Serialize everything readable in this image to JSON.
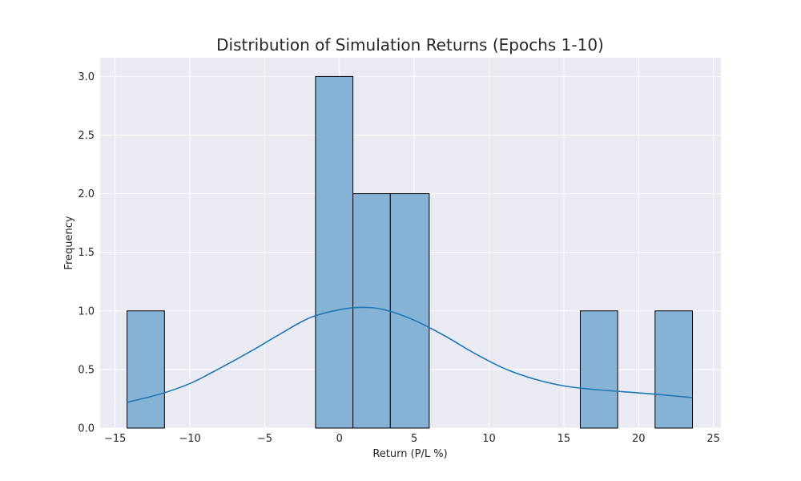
{
  "chart_data": {
    "type": "bar",
    "title": "Distribution of Simulation Returns (Epochs 1-10)",
    "xlabel": "Return (P/L %)",
    "ylabel": "Frequency",
    "xlim": [
      -16,
      25.5
    ],
    "ylim": [
      0,
      3.16
    ],
    "x_ticks": [
      -15,
      -10,
      -5,
      0,
      5,
      10,
      15,
      20,
      25
    ],
    "x_tick_labels": [
      "−15",
      "−10",
      "−5",
      "0",
      "5",
      "10",
      "15",
      "20",
      "25"
    ],
    "y_ticks": [
      0.0,
      0.5,
      1.0,
      1.5,
      2.0,
      2.5,
      3.0
    ],
    "y_tick_labels": [
      "0.0",
      "0.5",
      "1.0",
      "1.5",
      "2.0",
      "2.5",
      "3.0"
    ],
    "grid": true,
    "bins": [
      {
        "x0": -14.2,
        "x1": -11.7,
        "count": 1
      },
      {
        "x0": -11.7,
        "x1": -9.2,
        "count": 0
      },
      {
        "x0": -9.2,
        "x1": -6.6,
        "count": 0
      },
      {
        "x0": -6.6,
        "x1": -4.1,
        "count": 0
      },
      {
        "x0": -4.1,
        "x1": -1.6,
        "count": 0
      },
      {
        "x0": -1.6,
        "x1": 0.9,
        "count": 3
      },
      {
        "x0": 0.9,
        "x1": 3.4,
        "count": 2
      },
      {
        "x0": 3.4,
        "x1": 6.0,
        "count": 2
      },
      {
        "x0": 6.0,
        "x1": 8.5,
        "count": 0
      },
      {
        "x0": 8.5,
        "x1": 11.0,
        "count": 0
      },
      {
        "x0": 11.0,
        "x1": 13.5,
        "count": 0
      },
      {
        "x0": 13.5,
        "x1": 16.1,
        "count": 0
      },
      {
        "x0": 16.1,
        "x1": 18.6,
        "count": 1
      },
      {
        "x0": 18.6,
        "x1": 21.1,
        "count": 0
      },
      {
        "x0": 21.1,
        "x1": 23.6,
        "count": 1
      }
    ],
    "kde": {
      "x": [
        -14.2,
        -12.0,
        -10.0,
        -8.0,
        -6.0,
        -4.0,
        -2.0,
        0.0,
        1.5,
        3.0,
        5.0,
        7.0,
        9.0,
        11.0,
        13.0,
        15.0,
        17.0,
        19.0,
        21.0,
        23.6
      ],
      "y": [
        0.22,
        0.29,
        0.38,
        0.51,
        0.65,
        0.8,
        0.94,
        1.01,
        1.03,
        1.01,
        0.92,
        0.79,
        0.64,
        0.51,
        0.42,
        0.36,
        0.33,
        0.31,
        0.29,
        0.26
      ]
    },
    "colors": {
      "bar_fill": "#86b2d5",
      "bar_edge": "#000000",
      "kde_line": "#1f77b4",
      "plot_bg": "#eaeaf2",
      "grid": "#ffffff"
    }
  }
}
